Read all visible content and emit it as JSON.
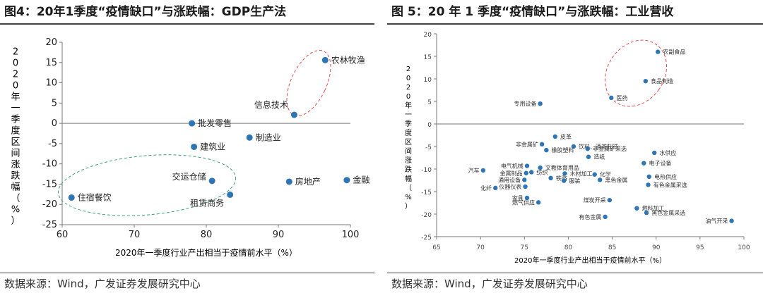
{
  "chart_data": [
    {
      "type": "scatter",
      "title": "图4：20年1季度“疫情缺口”与涨跌幅：GDP生产法",
      "xlabel": "2020年一季度行业产出相当于疫情前水平（%）",
      "ylabel": "2020年一季度区间涨跌幅（%）",
      "xlim": [
        60,
        100
      ],
      "ylim": [
        -25,
        20
      ],
      "xticks": [
        60,
        70,
        80,
        90,
        100
      ],
      "yticks": [
        20,
        15,
        10,
        5,
        0,
        -5,
        -10,
        -15,
        -20,
        -25
      ],
      "points": [
        {
          "label": "农林牧渔",
          "x": 96.5,
          "y": 15.6
        },
        {
          "label": "信息技术",
          "x": 92.2,
          "y": 2.1
        },
        {
          "label": "批发零售",
          "x": 78.0,
          "y": 0.0
        },
        {
          "label": "制造业",
          "x": 86.0,
          "y": -3.5
        },
        {
          "label": "建筑业",
          "x": 78.3,
          "y": -5.8
        },
        {
          "label": "交运仓储",
          "x": 80.8,
          "y": -14.2
        },
        {
          "label": "租赁商务",
          "x": 83.3,
          "y": -17.6
        },
        {
          "label": "住宿餐饮",
          "x": 61.3,
          "y": -18.3
        },
        {
          "label": "房地产",
          "x": 91.5,
          "y": -14.4
        },
        {
          "label": "金融",
          "x": 99.5,
          "y": -14.0
        }
      ],
      "color": "#2e75b6",
      "source": "数据来源：Wind，广发证券发展研究中心"
    },
    {
      "type": "scatter",
      "title": "图 5：20 年 1 季度“疫情缺口”与涨跌幅：工业营收",
      "xlabel": "2020年一季度行业产出相当于疫情前水平（%）",
      "ylabel": "2020年一季度区间涨跌幅（%）",
      "xlim": [
        65,
        100
      ],
      "ylim": [
        -25,
        20
      ],
      "xticks": [
        65,
        70,
        75,
        80,
        85,
        90,
        95,
        100
      ],
      "yticks": [
        20,
        15,
        10,
        5,
        0,
        -5,
        -10,
        -15,
        -20,
        -25
      ],
      "points": [
        {
          "label": "农副食品",
          "x": 90.2,
          "y": 16.0
        },
        {
          "label": "食品制造",
          "x": 88.8,
          "y": 9.5
        },
        {
          "label": "医药",
          "x": 84.9,
          "y": 5.8
        },
        {
          "label": "专用设备",
          "x": 76.8,
          "y": 4.5
        },
        {
          "label": "皮革",
          "x": 78.5,
          "y": -2.8
        },
        {
          "label": "饮料、酒茶制造",
          "x": 80.6,
          "y": -5.0
        },
        {
          "label": "非金属矿",
          "x": 77.0,
          "y": -4.5
        },
        {
          "label": "橡胶塑料",
          "x": 77.5,
          "y": -5.8
        },
        {
          "label": "非金属矿采选",
          "x": 82.2,
          "y": -5.5
        },
        {
          "label": "造纸",
          "x": 82.3,
          "y": -7.3
        },
        {
          "label": "水供应",
          "x": 89.8,
          "y": -6.4
        },
        {
          "label": "电子设备",
          "x": 88.6,
          "y": -8.7
        },
        {
          "label": "汽车",
          "x": 70.3,
          "y": -10.3
        },
        {
          "label": "电气机械",
          "x": 75.3,
          "y": -9.3
        },
        {
          "label": "文教体育用品",
          "x": 76.8,
          "y": -9.7
        },
        {
          "label": "金属制品",
          "x": 75.2,
          "y": -10.9
        },
        {
          "label": "纺织",
          "x": 75.8,
          "y": -10.7
        },
        {
          "label": "木材加工",
          "x": 79.6,
          "y": -11.0
        },
        {
          "label": "化学",
          "x": 83.0,
          "y": -11.2
        },
        {
          "label": "电热供应",
          "x": 89.2,
          "y": -11.7
        },
        {
          "label": "通用设备",
          "x": 75.0,
          "y": -12.4
        },
        {
          "label": "铁路",
          "x": 78.0,
          "y": -12.0
        },
        {
          "label": "服装",
          "x": 79.5,
          "y": -12.6
        },
        {
          "label": "黑色金属",
          "x": 83.6,
          "y": -12.4
        },
        {
          "label": "有色金属采选",
          "x": 89.1,
          "y": -13.5
        },
        {
          "label": "仪器仪表",
          "x": 75.1,
          "y": -13.9
        },
        {
          "label": "化纤",
          "x": 71.7,
          "y": -14.2
        },
        {
          "label": "家具",
          "x": 75.3,
          "y": -16.4
        },
        {
          "label": "燃气供应",
          "x": 76.6,
          "y": -17.4
        },
        {
          "label": "煤炭开采",
          "x": 84.7,
          "y": -16.9
        },
        {
          "label": "燃料加工",
          "x": 87.8,
          "y": -18.7
        },
        {
          "label": "黑色金属采选",
          "x": 88.9,
          "y": -19.7
        },
        {
          "label": "有色金属",
          "x": 84.2,
          "y": -20.6
        },
        {
          "label": "油气开采",
          "x": 98.6,
          "y": -21.5
        }
      ],
      "color": "#2e75b6",
      "source": "数据来源：Wind，广发证券发展研究中心"
    }
  ]
}
